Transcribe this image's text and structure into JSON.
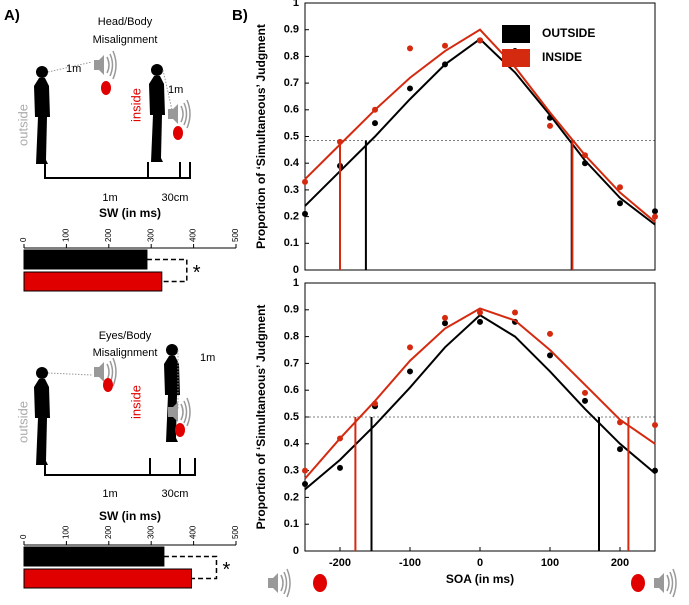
{
  "panel_a": {
    "label": "A)",
    "top": {
      "title_1": "Head/Body",
      "title_2": "Misalignment",
      "distance_label": "1m",
      "outside": "outside",
      "inside": "inside",
      "inside_distance": "1m",
      "outside_width": "1m",
      "inside_width": "30cm"
    },
    "bottom": {
      "title_1": "Eyes/Body",
      "title_2": "Misalignment",
      "outside": "outside",
      "inside": "inside",
      "inside_distance": "1m",
      "outside_width": "1m",
      "inside_width": "30cm"
    }
  },
  "panel_b": {
    "label": "B)"
  },
  "chart_data": [
    {
      "type": "hbar",
      "title": "SW (in ms)",
      "values": [
        290,
        325
      ],
      "colors": [
        "#000000",
        "#e00000"
      ],
      "xlim": [
        0,
        500
      ],
      "xticks": [
        0,
        100,
        200,
        300,
        400,
        500
      ],
      "annotation": "*"
    },
    {
      "type": "hbar",
      "title": "SW (in ms)",
      "values": [
        330,
        395
      ],
      "colors": [
        "#000000",
        "#e00000"
      ],
      "xlim": [
        0,
        500
      ],
      "xticks": [
        0,
        100,
        200,
        300,
        400,
        500
      ],
      "annotation": "*"
    },
    {
      "type": "scatter",
      "ylabel": "Proportion of ‘Simultaneous’ Judgment",
      "x": [
        -250,
        -200,
        -150,
        -100,
        -50,
        0,
        50,
        100,
        150,
        200,
        250
      ],
      "series": [
        {
          "name": "OUTSIDE",
          "color": "#000000",
          "values": [
            0.21,
            0.39,
            0.55,
            0.68,
            0.77,
            0.86,
            0.82,
            0.57,
            0.4,
            0.25,
            0.22
          ],
          "fit": [
            0.24,
            0.37,
            0.5,
            0.64,
            0.77,
            0.865,
            0.74,
            0.58,
            0.41,
            0.27,
            0.17
          ],
          "threshold_x": [
            -163,
            131
          ]
        },
        {
          "name": "INSIDE",
          "color": "#d42a10",
          "values": [
            0.33,
            0.48,
            0.6,
            0.83,
            0.84,
            0.86,
            0.78,
            0.54,
            0.43,
            0.31,
            0.2
          ],
          "fit": [
            0.34,
            0.47,
            0.6,
            0.72,
            0.82,
            0.9,
            0.76,
            0.59,
            0.43,
            0.29,
            0.18
          ],
          "threshold_x": [
            -200,
            132
          ]
        }
      ],
      "threshold_y": 0.485,
      "xlim": [
        -250,
        250
      ],
      "ylim": [
        0,
        1
      ],
      "yticks": [
        0,
        0.1,
        0.2,
        0.3,
        0.4,
        0.5,
        0.6,
        0.7,
        0.8,
        0.9,
        1
      ]
    },
    {
      "type": "scatter",
      "ylabel": "Proportion of ‘Simultaneous’ Judgment",
      "xlabel": "SOA (in ms)",
      "x": [
        -250,
        -200,
        -150,
        -100,
        -50,
        0,
        50,
        100,
        150,
        200,
        250
      ],
      "series": [
        {
          "color": "#000000",
          "values": [
            0.25,
            0.31,
            0.54,
            0.67,
            0.85,
            0.855,
            0.855,
            0.73,
            0.56,
            0.38,
            0.3
          ],
          "fit": [
            0.23,
            0.34,
            0.47,
            0.61,
            0.76,
            0.88,
            0.8,
            0.67,
            0.53,
            0.4,
            0.29
          ],
          "threshold_x": [
            -155,
            170
          ]
        },
        {
          "color": "#d42a10",
          "values": [
            0.3,
            0.42,
            0.55,
            0.76,
            0.87,
            0.89,
            0.89,
            0.81,
            0.59,
            0.48,
            0.47
          ],
          "fit": [
            0.27,
            0.42,
            0.56,
            0.71,
            0.83,
            0.905,
            0.86,
            0.75,
            0.62,
            0.49,
            0.4
          ],
          "threshold_x": [
            -178,
            212
          ]
        }
      ],
      "threshold_y": 0.5,
      "xlim": [
        -250,
        250
      ],
      "ylim": [
        0,
        1
      ],
      "xticks": [
        -200,
        -100,
        0,
        100,
        200
      ],
      "yticks": [
        0,
        0.1,
        0.2,
        0.3,
        0.4,
        0.5,
        0.6,
        0.7,
        0.8,
        0.9,
        1
      ]
    }
  ]
}
